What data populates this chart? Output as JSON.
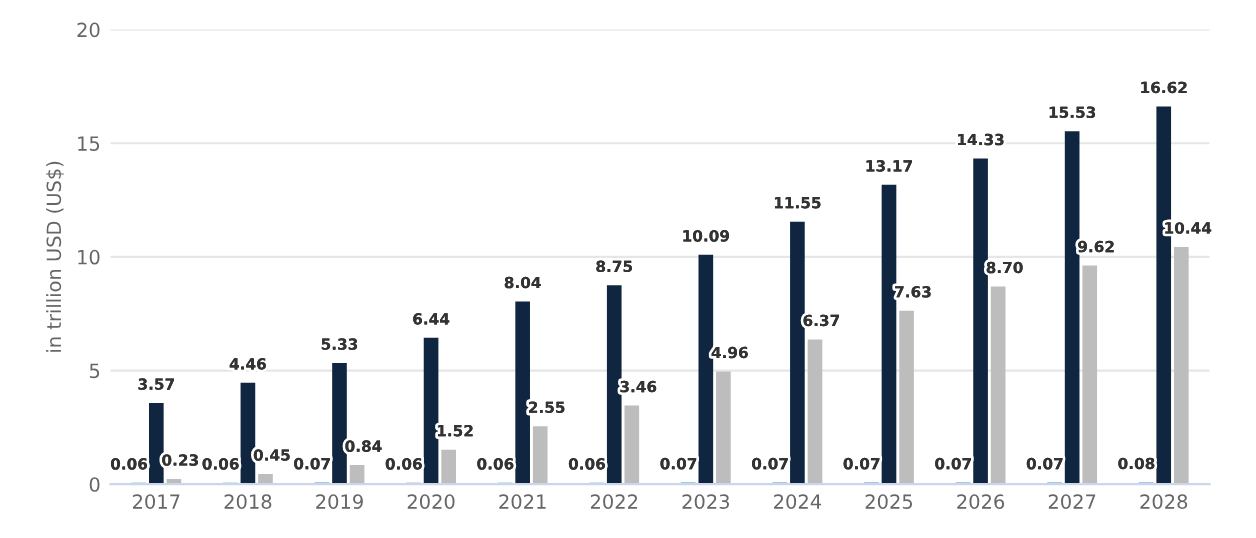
{
  "chart_data": {
    "type": "bar",
    "ylabel": "in trillion USD (US$)",
    "categories": [
      "2017",
      "2018",
      "2019",
      "2020",
      "2021",
      "2022",
      "2023",
      "2024",
      "2025",
      "2026",
      "2027",
      "2028"
    ],
    "series": [
      {
        "color": "#4a90d9",
        "values": [
          0.06,
          0.06,
          0.07,
          0.06,
          0.06,
          0.06,
          0.07,
          0.07,
          0.07,
          0.07,
          0.07,
          0.08
        ],
        "value_labels": [
          "0.06",
          "0.06",
          "0.07",
          "0.06",
          "0.06",
          "0.06",
          "0.07",
          "0.07",
          "0.07",
          "0.07",
          "0.07",
          "0.08"
        ]
      },
      {
        "color": "#0f2540",
        "values": [
          3.57,
          4.46,
          5.33,
          6.44,
          8.04,
          8.75,
          10.09,
          11.55,
          13.17,
          14.33,
          15.53,
          16.62
        ],
        "value_labels": [
          "3.57",
          "4.46",
          "5.33",
          "6.44",
          "8.04",
          "8.75",
          "10.09",
          "11.55",
          "13.17",
          "14.33",
          "15.53",
          "16.62"
        ]
      },
      {
        "color": "#bdbdbd",
        "values": [
          0.23,
          0.45,
          0.84,
          1.52,
          2.55,
          3.46,
          4.96,
          6.37,
          7.63,
          8.7,
          9.62,
          10.44
        ],
        "value_labels": [
          "0.23",
          "0.45",
          "0.84",
          "1.52",
          "2.55",
          "3.46",
          "4.96",
          "6.37",
          "7.63",
          "8.70",
          "9.62",
          "10.44"
        ]
      }
    ],
    "ylim": [
      0,
      20
    ],
    "yticks": [
      0,
      5,
      10,
      15,
      20
    ],
    "grid": "y",
    "legend": false
  }
}
